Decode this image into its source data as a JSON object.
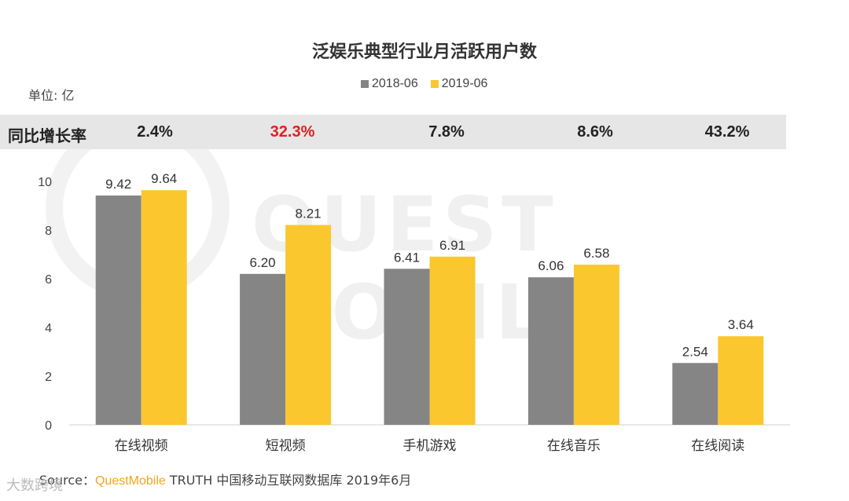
{
  "watermark": "QUEST MOBILE",
  "corner_mark": "大数跨境",
  "chart_data": {
    "type": "bar",
    "title": "泛娱乐典型行业月活跃用户数",
    "unit": "单位: 亿",
    "categories": [
      "在线视频",
      "短视频",
      "手机游戏",
      "在线音乐",
      "在线阅读"
    ],
    "series": [
      {
        "name": "2018-06",
        "values": [
          9.42,
          6.2,
          6.41,
          6.06,
          2.54
        ],
        "labels": [
          "9.42",
          "6.20",
          "6.41",
          "6.06",
          "2.54"
        ],
        "color": "#858585"
      },
      {
        "name": "2019-06",
        "values": [
          9.64,
          8.21,
          6.91,
          6.58,
          3.64
        ],
        "labels": [
          "9.64",
          "8.21",
          "6.91",
          "6.58",
          "3.64"
        ],
        "color": "#fbc72f"
      }
    ],
    "ylim": [
      0,
      10
    ],
    "yticks": [
      "0",
      "2",
      "4",
      "6",
      "8",
      "10"
    ],
    "grid": false,
    "legend": "top-center"
  },
  "growth": {
    "label": "同比增长率",
    "values": [
      "2.4%",
      "32.3%",
      "7.8%",
      "8.6%",
      "43.2%"
    ],
    "highlight_index": 1,
    "highlight_color": "#e02020"
  },
  "source": {
    "prefix": "Source：",
    "brand": "QuestMobile",
    "rest": " TRUTH 中国移动互联网数据库 2019年6月"
  }
}
